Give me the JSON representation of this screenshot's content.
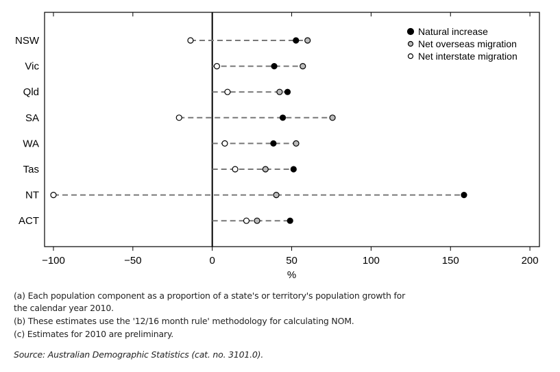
{
  "chart_data": {
    "type": "scatter",
    "categories": [
      "NSW",
      "Vic",
      "Qld",
      "SA",
      "WA",
      "Tas",
      "NT",
      "ACT"
    ],
    "series": [
      {
        "name": "Natural increase",
        "color": "#000000",
        "values": [
          52.7,
          39,
          47.4,
          44.4,
          38.5,
          51.2,
          158.5,
          49
        ]
      },
      {
        "name": "Net overseas migration",
        "color": "#bbbbbb",
        "values": [
          60,
          57,
          42.4,
          75.7,
          52.8,
          33.5,
          40.3,
          28.2
        ]
      },
      {
        "name": "Net interstate migration",
        "color": "#ffffff",
        "values": [
          -13.7,
          2.9,
          9.6,
          -20.9,
          7.9,
          14.4,
          -100,
          21.5
        ]
      }
    ],
    "xlabel": "%",
    "xlim": [
      -105.6,
      206
    ],
    "xticks": [
      -100,
      -50,
      0,
      50,
      100,
      150,
      200
    ],
    "xtick_labels": [
      "−100",
      "−50",
      "0",
      "50",
      "100",
      "150",
      "200"
    ],
    "legend_placement": "top-right",
    "grid": false
  },
  "notes": [
    "(a) Each population component as a proportion of a state's or territory's population growth for",
    "the calendar year 2010.",
    "(b) These estimates use the '12/16 month rule' methodology for calculating NOM.",
    "(c) Estimates for 2010 are preliminary."
  ],
  "source": "Source: Australian Demographic Statistics (cat. no. 3101.0)."
}
